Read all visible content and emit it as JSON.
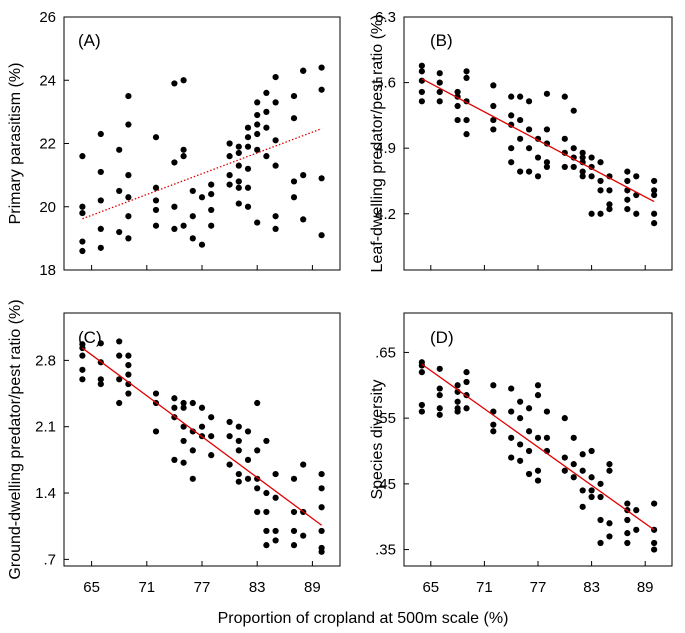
{
  "figure": {
    "shared_xlabel": "Proportion of cropland at 500m scale (%)"
  },
  "colors": {
    "points": "#000000",
    "trend": "#e00000"
  },
  "chart_data": [
    {
      "id": "A",
      "letter": "(A)",
      "type": "scatter",
      "ylabel": "Primary parasitism (%)",
      "xlim": [
        62,
        92
      ],
      "ylim": [
        18,
        26
      ],
      "xticks": [
        65,
        71,
        77,
        83,
        89
      ],
      "xtick_labels": [
        "",
        "",
        "",
        "",
        ""
      ],
      "yticks": [
        18,
        20,
        22,
        24,
        26
      ],
      "ytick_labels": [
        "18",
        "20",
        "22",
        "24",
        "26"
      ],
      "trend": {
        "x": [
          64,
          90
        ],
        "y": [
          19.62,
          22.47
        ],
        "style": "dotted"
      },
      "points": [
        [
          64,
          21.6
        ],
        [
          64,
          20.0
        ],
        [
          64,
          19.8
        ],
        [
          64,
          18.9
        ],
        [
          64,
          18.6
        ],
        [
          66,
          22.3
        ],
        [
          66,
          21.1
        ],
        [
          66,
          20.2
        ],
        [
          66,
          19.3
        ],
        [
          66,
          18.7
        ],
        [
          68,
          21.8
        ],
        [
          68,
          20.5
        ],
        [
          68,
          19.2
        ],
        [
          69,
          23.5
        ],
        [
          69,
          22.6
        ],
        [
          69,
          21.0
        ],
        [
          69,
          20.3
        ],
        [
          69,
          19.7
        ],
        [
          69,
          19.0
        ],
        [
          72,
          22.2
        ],
        [
          72,
          20.6
        ],
        [
          72,
          20.2
        ],
        [
          72,
          19.9
        ],
        [
          72,
          19.4
        ],
        [
          74,
          23.9
        ],
        [
          74,
          21.4
        ],
        [
          74,
          20.0
        ],
        [
          74,
          19.3
        ],
        [
          75,
          24.0
        ],
        [
          75,
          21.8
        ],
        [
          75,
          21.6
        ],
        [
          75,
          19.4
        ],
        [
          76,
          20.5
        ],
        [
          76,
          19.7
        ],
        [
          76,
          19.0
        ],
        [
          77,
          20.3
        ],
        [
          77,
          18.8
        ],
        [
          78,
          20.7
        ],
        [
          78,
          20.4
        ],
        [
          78,
          19.9
        ],
        [
          78,
          19.4
        ],
        [
          80,
          22.0
        ],
        [
          80,
          21.6
        ],
        [
          80,
          21.0
        ],
        [
          80,
          20.7
        ],
        [
          81,
          21.9
        ],
        [
          81,
          21.7
        ],
        [
          81,
          21.3
        ],
        [
          81,
          20.8
        ],
        [
          81,
          20.6
        ],
        [
          81,
          20.1
        ],
        [
          82,
          22.5
        ],
        [
          82,
          22.2
        ],
        [
          82,
          21.9
        ],
        [
          82,
          21.2
        ],
        [
          82,
          20.6
        ],
        [
          82,
          20.0
        ],
        [
          83,
          23.3
        ],
        [
          83,
          22.9
        ],
        [
          83,
          22.6
        ],
        [
          83,
          22.3
        ],
        [
          83,
          21.8
        ],
        [
          83,
          19.5
        ],
        [
          84,
          23.6
        ],
        [
          84,
          23.0
        ],
        [
          84,
          22.5
        ],
        [
          84,
          21.6
        ],
        [
          85,
          24.1
        ],
        [
          85,
          23.3
        ],
        [
          85,
          22.1
        ],
        [
          85,
          21.3
        ],
        [
          85,
          19.7
        ],
        [
          85,
          19.3
        ],
        [
          87,
          23.5
        ],
        [
          87,
          22.8
        ],
        [
          87,
          20.8
        ],
        [
          87,
          20.3
        ],
        [
          88,
          24.3
        ],
        [
          88,
          24.3
        ],
        [
          88,
          21.0
        ],
        [
          88,
          19.6
        ],
        [
          90,
          24.4
        ],
        [
          90,
          23.7
        ],
        [
          90,
          20.9
        ],
        [
          90,
          19.1
        ]
      ]
    },
    {
      "id": "B",
      "letter": "(B)",
      "type": "scatter",
      "ylabel": "Leaf-dwelling predator/pest ratio (%)",
      "xlim": [
        62,
        92
      ],
      "ylim": [
        3.6,
        6.3
      ],
      "xticks": [
        65,
        71,
        77,
        83,
        89
      ],
      "xtick_labels": [
        "",
        "",
        "",
        "",
        ""
      ],
      "yticks": [
        4.2,
        4.9,
        5.6,
        6.3
      ],
      "ytick_labels": [
        "4.2",
        "4.9",
        "5.6",
        "6.3"
      ],
      "trend": {
        "x": [
          64,
          90
        ],
        "y": [
          5.64,
          4.33
        ],
        "style": "solid"
      },
      "points": [
        [
          64,
          5.78
        ],
        [
          64,
          5.72
        ],
        [
          64,
          5.62
        ],
        [
          64,
          5.5
        ],
        [
          64,
          5.4
        ],
        [
          66,
          5.7
        ],
        [
          66,
          5.6
        ],
        [
          66,
          5.5
        ],
        [
          66,
          5.4
        ],
        [
          68,
          5.5
        ],
        [
          68,
          5.45
        ],
        [
          68,
          5.35
        ],
        [
          68,
          5.2
        ],
        [
          69,
          5.72
        ],
        [
          69,
          5.65
        ],
        [
          69,
          5.4
        ],
        [
          69,
          5.2
        ],
        [
          69,
          5.05
        ],
        [
          72,
          5.57
        ],
        [
          72,
          5.35
        ],
        [
          72,
          5.2
        ],
        [
          72,
          5.1
        ],
        [
          74,
          5.45
        ],
        [
          74,
          5.25
        ],
        [
          74,
          5.15
        ],
        [
          74,
          4.9
        ],
        [
          74,
          4.75
        ],
        [
          75,
          5.45
        ],
        [
          75,
          5.2
        ],
        [
          75,
          5.0
        ],
        [
          75,
          4.65
        ],
        [
          76,
          5.4
        ],
        [
          76,
          5.1
        ],
        [
          76,
          4.9
        ],
        [
          76,
          4.65
        ],
        [
          77,
          5.0
        ],
        [
          77,
          4.8
        ],
        [
          77,
          4.6
        ],
        [
          78,
          5.48
        ],
        [
          78,
          5.1
        ],
        [
          78,
          4.95
        ],
        [
          78,
          4.75
        ],
        [
          78,
          4.7
        ],
        [
          80,
          5.45
        ],
        [
          80,
          5.0
        ],
        [
          80,
          4.85
        ],
        [
          80,
          4.7
        ],
        [
          81,
          5.3
        ],
        [
          81,
          4.9
        ],
        [
          81,
          4.8
        ],
        [
          81,
          4.7
        ],
        [
          82,
          4.85
        ],
        [
          82,
          4.8
        ],
        [
          82,
          4.75
        ],
        [
          82,
          4.65
        ],
        [
          82,
          4.6
        ],
        [
          83,
          4.8
        ],
        [
          83,
          4.7
        ],
        [
          83,
          4.6
        ],
        [
          83,
          4.2
        ],
        [
          84,
          4.75
        ],
        [
          84,
          4.55
        ],
        [
          84,
          4.45
        ],
        [
          84,
          4.2
        ],
        [
          85,
          4.6
        ],
        [
          85,
          4.45
        ],
        [
          85,
          4.3
        ],
        [
          85,
          4.25
        ],
        [
          87,
          4.65
        ],
        [
          87,
          4.55
        ],
        [
          87,
          4.45
        ],
        [
          87,
          4.35
        ],
        [
          87,
          4.25
        ],
        [
          88,
          4.6
        ],
        [
          88,
          4.4
        ],
        [
          88,
          4.2
        ],
        [
          90,
          4.55
        ],
        [
          90,
          4.45
        ],
        [
          90,
          4.4
        ],
        [
          90,
          4.2
        ],
        [
          90,
          4.1
        ]
      ]
    },
    {
      "id": "C",
      "letter": "(C)",
      "type": "scatter",
      "ylabel": "Ground-dwelling predator/pest ratio (%)",
      "xlim": [
        62,
        92
      ],
      "ylim": [
        0.63,
        3.3
      ],
      "xticks": [
        65,
        71,
        77,
        83,
        89
      ],
      "xtick_labels": [
        "65",
        "71",
        "77",
        "83",
        "89"
      ],
      "yticks": [
        0.7,
        1.4,
        2.1,
        2.8
      ],
      "ytick_labels": [
        ".7",
        "1.4",
        "2.1",
        "2.8"
      ],
      "trend": {
        "x": [
          64,
          90
        ],
        "y": [
          2.93,
          1.06
        ],
        "style": "solid"
      },
      "points": [
        [
          64,
          2.97
        ],
        [
          64,
          2.93
        ],
        [
          64,
          2.85
        ],
        [
          64,
          2.7
        ],
        [
          64,
          2.6
        ],
        [
          66,
          2.98
        ],
        [
          66,
          2.78
        ],
        [
          66,
          2.6
        ],
        [
          66,
          2.55
        ],
        [
          68,
          3.0
        ],
        [
          68,
          2.85
        ],
        [
          68,
          2.6
        ],
        [
          68,
          2.35
        ],
        [
          69,
          2.85
        ],
        [
          69,
          2.75
        ],
        [
          69,
          2.65
        ],
        [
          69,
          2.55
        ],
        [
          69,
          2.45
        ],
        [
          72,
          2.45
        ],
        [
          72,
          2.35
        ],
        [
          72,
          2.05
        ],
        [
          74,
          2.4
        ],
        [
          74,
          2.3
        ],
        [
          74,
          2.2
        ],
        [
          74,
          1.75
        ],
        [
          75,
          2.35
        ],
        [
          75,
          2.3
        ],
        [
          75,
          2.1
        ],
        [
          75,
          1.95
        ],
        [
          75,
          1.72
        ],
        [
          76,
          2.35
        ],
        [
          76,
          2.05
        ],
        [
          76,
          1.85
        ],
        [
          76,
          1.55
        ],
        [
          77,
          2.3
        ],
        [
          77,
          2.1
        ],
        [
          77,
          2.0
        ],
        [
          78,
          2.2
        ],
        [
          78,
          2.0
        ],
        [
          78,
          1.8
        ],
        [
          80,
          2.15
        ],
        [
          80,
          2.0
        ],
        [
          80,
          1.7
        ],
        [
          81,
          2.1
        ],
        [
          81,
          1.95
        ],
        [
          81,
          1.85
        ],
        [
          81,
          1.6
        ],
        [
          81,
          1.52
        ],
        [
          82,
          2.05
        ],
        [
          82,
          1.75
        ],
        [
          82,
          1.55
        ],
        [
          83,
          2.35
        ],
        [
          83,
          1.85
        ],
        [
          83,
          1.55
        ],
        [
          83,
          1.45
        ],
        [
          83,
          1.2
        ],
        [
          84,
          1.95
        ],
        [
          84,
          1.4
        ],
        [
          84,
          1.2
        ],
        [
          84,
          1.0
        ],
        [
          84,
          0.85
        ],
        [
          85,
          1.6
        ],
        [
          85,
          1.35
        ],
        [
          85,
          1.0
        ],
        [
          85,
          0.9
        ],
        [
          87,
          1.55
        ],
        [
          87,
          1.2
        ],
        [
          87,
          1.0
        ],
        [
          87,
          0.85
        ],
        [
          88,
          1.7
        ],
        [
          88,
          1.2
        ],
        [
          88,
          0.95
        ],
        [
          90,
          1.6
        ],
        [
          90,
          1.45
        ],
        [
          90,
          1.25
        ],
        [
          90,
          1.0
        ],
        [
          90,
          0.82
        ],
        [
          90,
          0.78
        ]
      ]
    },
    {
      "id": "D",
      "letter": "(D)",
      "type": "scatter",
      "ylabel": "Species diversity",
      "xlim": [
        62,
        92
      ],
      "ylim": [
        0.325,
        0.71
      ],
      "xticks": [
        65,
        71,
        77,
        83,
        89
      ],
      "xtick_labels": [
        "65",
        "71",
        "77",
        "83",
        "89"
      ],
      "yticks": [
        0.35,
        0.45,
        0.55,
        0.65
      ],
      "ytick_labels": [
        ".35",
        ".45",
        ".55",
        ".65"
      ],
      "trend": {
        "x": [
          64,
          90
        ],
        "y": [
          0.632,
          0.38
        ],
        "style": "solid"
      },
      "points": [
        [
          64,
          0.635
        ],
        [
          64,
          0.63
        ],
        [
          64,
          0.62
        ],
        [
          64,
          0.57
        ],
        [
          64,
          0.56
        ],
        [
          66,
          0.625
        ],
        [
          66,
          0.595
        ],
        [
          66,
          0.585
        ],
        [
          66,
          0.565
        ],
        [
          66,
          0.555
        ],
        [
          68,
          0.6
        ],
        [
          68,
          0.59
        ],
        [
          68,
          0.575
        ],
        [
          68,
          0.565
        ],
        [
          68,
          0.56
        ],
        [
          69,
          0.62
        ],
        [
          69,
          0.605
        ],
        [
          69,
          0.585
        ],
        [
          69,
          0.565
        ],
        [
          72,
          0.6
        ],
        [
          72,
          0.56
        ],
        [
          72,
          0.54
        ],
        [
          72,
          0.53
        ],
        [
          74,
          0.595
        ],
        [
          74,
          0.56
        ],
        [
          74,
          0.52
        ],
        [
          74,
          0.49
        ],
        [
          75,
          0.575
        ],
        [
          75,
          0.55
        ],
        [
          75,
          0.51
        ],
        [
          75,
          0.485
        ],
        [
          76,
          0.565
        ],
        [
          76,
          0.53
        ],
        [
          76,
          0.5
        ],
        [
          76,
          0.465
        ],
        [
          77,
          0.6
        ],
        [
          77,
          0.585
        ],
        [
          77,
          0.52
        ],
        [
          77,
          0.47
        ],
        [
          77,
          0.455
        ],
        [
          78,
          0.56
        ],
        [
          78,
          0.52
        ],
        [
          78,
          0.5
        ],
        [
          80,
          0.55
        ],
        [
          80,
          0.49
        ],
        [
          80,
          0.47
        ],
        [
          81,
          0.52
        ],
        [
          81,
          0.48
        ],
        [
          81,
          0.46
        ],
        [
          82,
          0.495
        ],
        [
          82,
          0.47
        ],
        [
          82,
          0.44
        ],
        [
          82,
          0.415
        ],
        [
          83,
          0.5
        ],
        [
          83,
          0.46
        ],
        [
          83,
          0.44
        ],
        [
          83,
          0.43
        ],
        [
          84,
          0.45
        ],
        [
          84,
          0.43
        ],
        [
          84,
          0.395
        ],
        [
          84,
          0.36
        ],
        [
          85,
          0.48
        ],
        [
          85,
          0.47
        ],
        [
          85,
          0.39
        ],
        [
          85,
          0.37
        ],
        [
          87,
          0.42
        ],
        [
          87,
          0.41
        ],
        [
          87,
          0.395
        ],
        [
          87,
          0.375
        ],
        [
          87,
          0.36
        ],
        [
          88,
          0.41
        ],
        [
          88,
          0.38
        ],
        [
          90,
          0.42
        ],
        [
          90,
          0.38
        ],
        [
          90,
          0.36
        ],
        [
          90,
          0.35
        ]
      ]
    }
  ]
}
